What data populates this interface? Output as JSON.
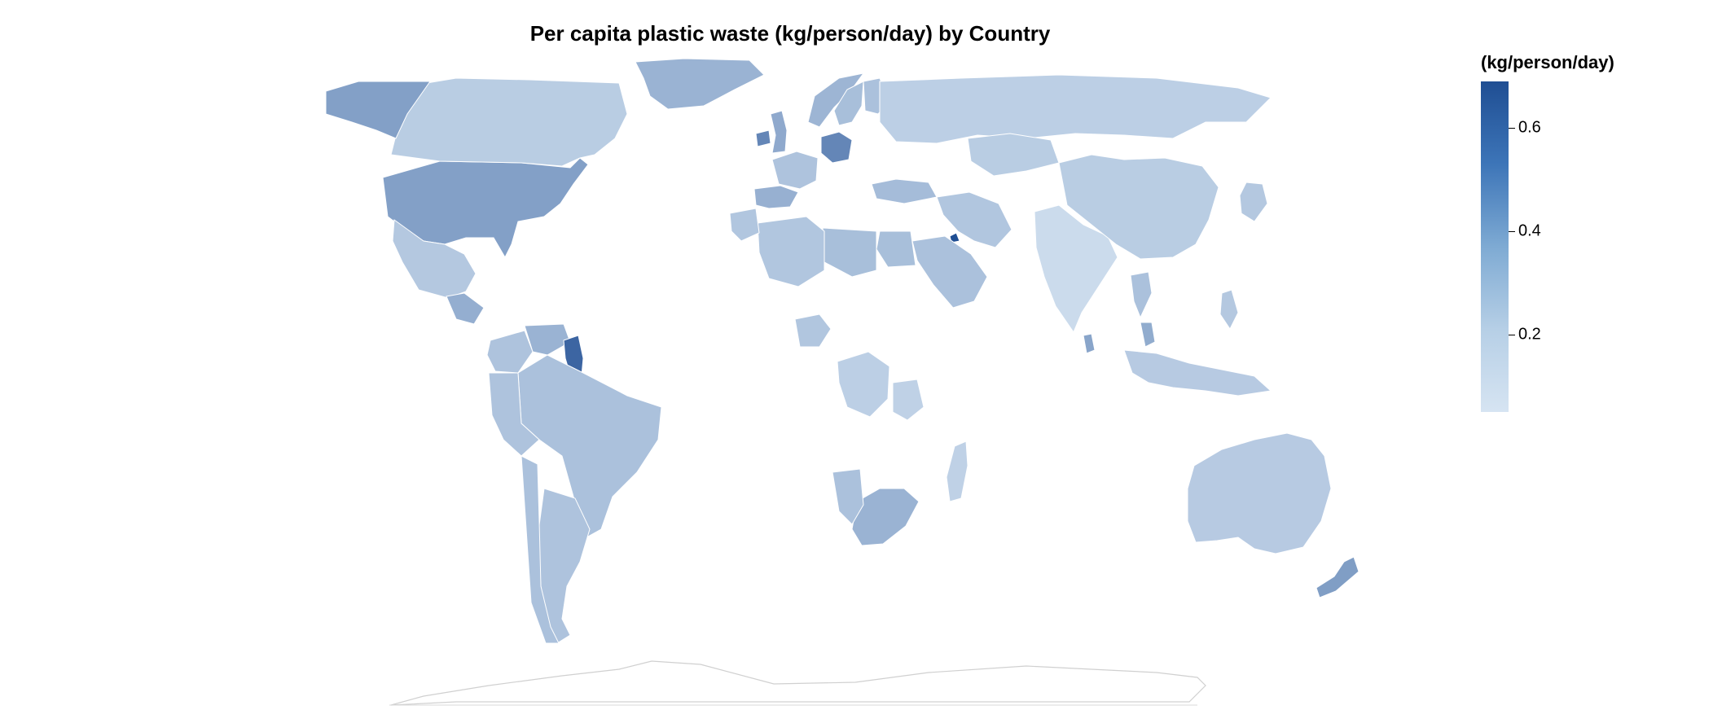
{
  "title": "Per capita plastic waste (kg/person/day) by Country",
  "legend": {
    "title": "(kg/person/day)",
    "ticks": [
      {
        "value": 0.6,
        "label": "0.6"
      },
      {
        "value": 0.4,
        "label": "0.4"
      },
      {
        "value": 0.2,
        "label": "0.2"
      }
    ],
    "range": [
      0.05,
      0.69
    ],
    "color_low": "#d6e4f2",
    "color_high": "#1f4e93"
  },
  "chart_data": {
    "type": "choropleth",
    "measure": "kg/person/day",
    "values": [
      {
        "country": "United States",
        "value": 0.34
      },
      {
        "country": "Canada",
        "value": 0.15
      },
      {
        "country": "Alaska (US)",
        "value": 0.34
      },
      {
        "country": "Mexico",
        "value": 0.17
      },
      {
        "country": "Guatemala",
        "value": 0.28
      },
      {
        "country": "Colombia",
        "value": 0.19
      },
      {
        "country": "Venezuela",
        "value": 0.26
      },
      {
        "country": "Guyana",
        "value": 0.59
      },
      {
        "country": "Brazil",
        "value": 0.2
      },
      {
        "country": "Peru",
        "value": 0.19
      },
      {
        "country": "Argentina",
        "value": 0.19
      },
      {
        "country": "Chile",
        "value": 0.2
      },
      {
        "country": "Greenland",
        "value": 0.26
      },
      {
        "country": "Germany",
        "value": 0.45
      },
      {
        "country": "Ireland",
        "value": 0.45
      },
      {
        "country": "United Kingdom",
        "value": 0.3
      },
      {
        "country": "France",
        "value": 0.19
      },
      {
        "country": "Spain",
        "value": 0.27
      },
      {
        "country": "Norway",
        "value": 0.25
      },
      {
        "country": "Sweden",
        "value": 0.21
      },
      {
        "country": "Finland",
        "value": 0.2
      },
      {
        "country": "Russia",
        "value": 0.14
      },
      {
        "country": "Turkey",
        "value": 0.22
      },
      {
        "country": "Kuwait",
        "value": 0.69
      },
      {
        "country": "Saudi Arabia",
        "value": 0.2
      },
      {
        "country": "Iran",
        "value": 0.18
      },
      {
        "country": "Egypt",
        "value": 0.21
      },
      {
        "country": "Libya",
        "value": 0.21
      },
      {
        "country": "Algeria",
        "value": 0.18
      },
      {
        "country": "Morocco",
        "value": 0.18
      },
      {
        "country": "Nigeria",
        "value": 0.18
      },
      {
        "country": "DR Congo",
        "value": 0.14
      },
      {
        "country": "Tanzania",
        "value": 0.13
      },
      {
        "country": "South Africa",
        "value": 0.26
      },
      {
        "country": "Namibia",
        "value": 0.2
      },
      {
        "country": "Madagascar",
        "value": 0.13
      },
      {
        "country": "India",
        "value": 0.09
      },
      {
        "country": "Sri Lanka",
        "value": 0.32
      },
      {
        "country": "China",
        "value": 0.15
      },
      {
        "country": "Kazakhstan",
        "value": 0.15
      },
      {
        "country": "Thailand",
        "value": 0.2
      },
      {
        "country": "Malaysia",
        "value": 0.29
      },
      {
        "country": "Indonesia",
        "value": 0.16
      },
      {
        "country": "Philippines",
        "value": 0.17
      },
      {
        "country": "Japan",
        "value": 0.17
      },
      {
        "country": "Australia",
        "value": 0.16
      },
      {
        "country": "New Zealand",
        "value": 0.35
      }
    ]
  }
}
